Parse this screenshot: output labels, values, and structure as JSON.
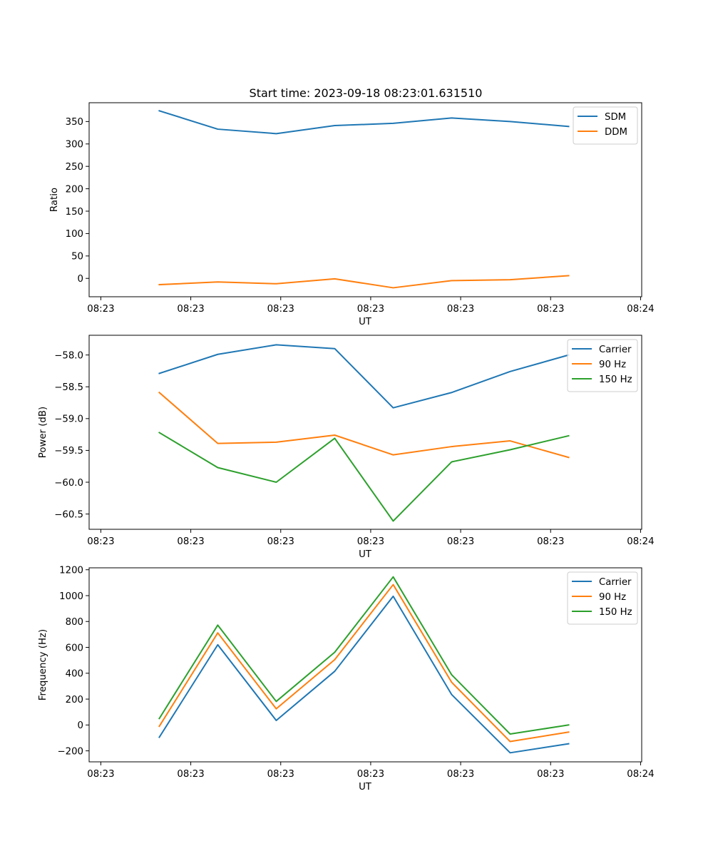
{
  "figure": {
    "title": "Start time: 2023-09-18 08:23:01.631510"
  },
  "chart_data": [
    {
      "type": "line",
      "title": "Start time: 2023-09-18 08:23:01.631510",
      "xlabel": "UT",
      "ylabel": "Ratio",
      "x": [
        1,
        2,
        3,
        4,
        5,
        6,
        7,
        8
      ],
      "x_ticks": [
        0,
        1.5385,
        3.0769,
        4.6154,
        6.1538,
        7.6923,
        9.2308
      ],
      "x_tick_labels": [
        "08:23",
        "08:23",
        "08:23",
        "08:23",
        "08:23",
        "08:23",
        "08:24"
      ],
      "xlim": [
        -0.2,
        9.25
      ],
      "ylim": [
        -41,
        392
      ],
      "y_ticks": [
        0,
        50,
        100,
        150,
        200,
        250,
        300,
        350
      ],
      "y_tick_labels": [
        "0",
        "50",
        "100",
        "150",
        "200",
        "250",
        "300",
        "350"
      ],
      "legend_position": "top-right",
      "series": [
        {
          "name": "SDM",
          "color": "#1f77b4",
          "values": [
            374,
            333,
            323,
            341,
            346,
            358,
            350,
            339
          ]
        },
        {
          "name": "DDM",
          "color": "#ff7f0e",
          "values": [
            -14,
            -8,
            -12,
            -1,
            -21,
            -5,
            -3,
            6
          ]
        }
      ]
    },
    {
      "type": "line",
      "title": "",
      "xlabel": "UT",
      "ylabel": "Power (dB)",
      "x": [
        1,
        2,
        3,
        4,
        5,
        6,
        7,
        8
      ],
      "x_ticks": [
        0,
        1.5385,
        3.0769,
        4.6154,
        6.1538,
        7.6923,
        9.2308
      ],
      "x_tick_labels": [
        "08:23",
        "08:23",
        "08:23",
        "08:23",
        "08:23",
        "08:23",
        "08:24"
      ],
      "xlim": [
        -0.2,
        9.25
      ],
      "ylim": [
        -60.74,
        -57.69
      ],
      "y_ticks": [
        -58.0,
        -58.5,
        -59.0,
        -59.5,
        -60.0,
        -60.5
      ],
      "y_tick_labels": [
        "−58.0",
        "−58.5",
        "−59.0",
        "−59.5",
        "−60.0",
        "−60.5"
      ],
      "legend_position": "top-right",
      "series": [
        {
          "name": "Carrier",
          "color": "#1f77b4",
          "values": [
            -58.29,
            -57.99,
            -57.84,
            -57.9,
            -58.83,
            -58.59,
            -58.26,
            -58.0
          ]
        },
        {
          "name": "90 Hz",
          "color": "#ff7f0e",
          "values": [
            -58.59,
            -59.39,
            -59.37,
            -59.26,
            -59.57,
            -59.44,
            -59.35,
            -59.61
          ]
        },
        {
          "name": "150 Hz",
          "color": "#2ca02c",
          "values": [
            -59.22,
            -59.77,
            -60.0,
            -59.31,
            -60.61,
            -59.68,
            -59.49,
            -59.27
          ]
        }
      ]
    },
    {
      "type": "line",
      "title": "",
      "xlabel": "UT",
      "ylabel": "Frequency (Hz)",
      "x": [
        1,
        2,
        3,
        4,
        5,
        6,
        7,
        8
      ],
      "x_ticks": [
        0,
        1.5385,
        3.0769,
        4.6154,
        6.1538,
        7.6923,
        9.2308
      ],
      "x_tick_labels": [
        "08:23",
        "08:23",
        "08:23",
        "08:23",
        "08:23",
        "08:23",
        "08:24"
      ],
      "xlim": [
        -0.2,
        9.25
      ],
      "ylim": [
        -285,
        1215
      ],
      "y_ticks": [
        -200,
        0,
        200,
        400,
        600,
        800,
        1000,
        1200
      ],
      "y_tick_labels": [
        "−200",
        "0",
        "200",
        "400",
        "600",
        "800",
        "1000",
        "1200"
      ],
      "legend_position": "top-right",
      "series": [
        {
          "name": "Carrier",
          "color": "#1f77b4",
          "values": [
            -95,
            620,
            35,
            415,
            995,
            235,
            -215,
            -145
          ]
        },
        {
          "name": "90 Hz",
          "color": "#ff7f0e",
          "values": [
            -10,
            712,
            125,
            505,
            1085,
            330,
            -128,
            -55
          ]
        },
        {
          "name": "150 Hz",
          "color": "#2ca02c",
          "values": [
            50,
            772,
            182,
            562,
            1145,
            388,
            -70,
            0
          ]
        }
      ]
    }
  ]
}
